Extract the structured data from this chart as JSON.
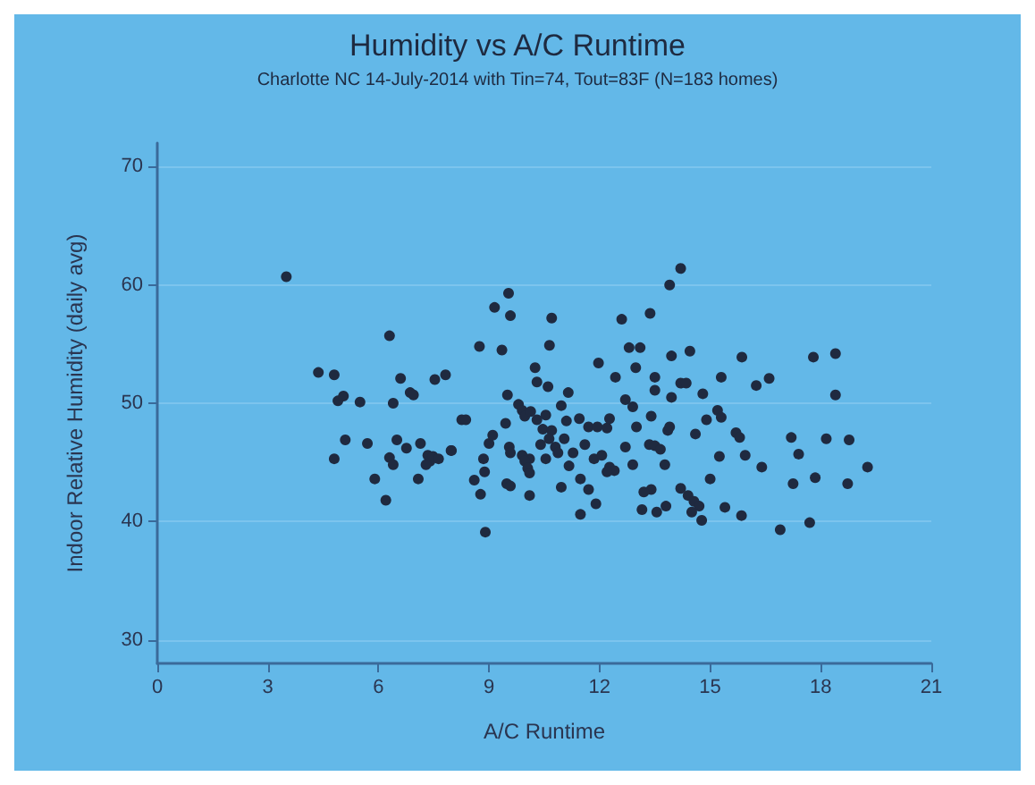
{
  "chart_data": {
    "type": "scatter",
    "title": "Humidity vs A/C Runtime",
    "subtitle": "Charlotte NC 14-July-2014 with Tin=74, Tout=83F (N=183 homes)",
    "xlabel": "A/C Runtime",
    "ylabel": "Indoor Relative Humidity (daily avg)",
    "xlim": [
      0,
      21
    ],
    "xticks": [
      0,
      3,
      6,
      9,
      12,
      15,
      18,
      21
    ],
    "ylim": [
      28,
      72
    ],
    "yticks": [
      30,
      40,
      50,
      60,
      70
    ],
    "grid": "y",
    "marker": "circle",
    "series": [
      {
        "color": "#1f2a40",
        "x": [
          3.5,
          4.37,
          4.8,
          4.9,
          5.05,
          5.5,
          4.8,
          5.1,
          5.7,
          5.9,
          6.2,
          6.3,
          6.4,
          6.6,
          6.5,
          6.3,
          6.4,
          6.76,
          6.86,
          6.95,
          7.14,
          7.08,
          7.34,
          7.4,
          7.29,
          7.48,
          7.63,
          7.97,
          7.98,
          7.53,
          7.82,
          8.26,
          8.37,
          8.74,
          8.6,
          8.77,
          8.85,
          8.88,
          8.9,
          9.0,
          9.1,
          9.15,
          9.53,
          9.58,
          9.35,
          9.5,
          9.45,
          9.55,
          9.58,
          9.48,
          9.58,
          9.8,
          9.9,
          9.97,
          10.1,
          9.9,
          9.97,
          10.05,
          10.1,
          10.1,
          10.25,
          10.3,
          10.7,
          10.64,
          10.6,
          11.15,
          10.13,
          10.3,
          10.46,
          10.7,
          10.54,
          10.96,
          11.1,
          11.45,
          11.7,
          11.94,
          12.2,
          12.27,
          10.8,
          10.87,
          10.63,
          11.04,
          10.4,
          10.54,
          11.17,
          11.28,
          11.6,
          11.85,
          12.06,
          12.27,
          12.4,
          12.2,
          10.96,
          11.48,
          11.7,
          11.9,
          11.48,
          11.97,
          12.43,
          12.6,
          12.8,
          13.1,
          12.98,
          13.37,
          12.7,
          12.9,
          13.5,
          13.5,
          13.0,
          13.4,
          12.7,
          13.35,
          13.5,
          13.65,
          13.85,
          13.9,
          13.95,
          13.95,
          13.9,
          14.2,
          14.2,
          14.35,
          14.45,
          14.8,
          14.9,
          15.2,
          15.3,
          15.3,
          14.6,
          13.77,
          12.9,
          13.4,
          13.2,
          13.15,
          13.55,
          13.8,
          14.2,
          14.4,
          14.56,
          14.7,
          14.77,
          14.5,
          15.0,
          15.25,
          15.7,
          15.8,
          15.95,
          15.4,
          15.85,
          15.86,
          16.25,
          16.6,
          16.4,
          16.9,
          17.2,
          17.4,
          17.25,
          17.7,
          17.85,
          17.8,
          18.4,
          18.15,
          18.4,
          18.77,
          18.73,
          19.27
        ],
        "values": [
          60.7,
          52.6,
          52.4,
          50.2,
          50.6,
          50.1,
          45.3,
          46.9,
          46.6,
          43.6,
          41.8,
          55.7,
          50.0,
          52.1,
          46.9,
          45.4,
          44.8,
          46.2,
          50.9,
          50.7,
          46.6,
          43.6,
          45.6,
          45.1,
          44.8,
          45.5,
          45.3,
          46.0,
          46.0,
          52.0,
          52.4,
          48.6,
          48.6,
          54.8,
          43.5,
          42.3,
          45.3,
          44.2,
          39.1,
          46.6,
          47.3,
          58.1,
          59.3,
          57.4,
          54.5,
          50.7,
          48.3,
          46.3,
          45.8,
          43.2,
          43.0,
          49.9,
          49.4,
          48.9,
          45.3,
          45.6,
          45.1,
          44.5,
          44.1,
          42.2,
          53.0,
          51.8,
          57.2,
          54.9,
          51.4,
          50.9,
          49.3,
          48.6,
          47.8,
          47.7,
          49.0,
          49.8,
          48.5,
          48.7,
          48.0,
          48.0,
          47.9,
          48.7,
          46.3,
          45.8,
          47.0,
          47.0,
          46.5,
          45.3,
          44.7,
          45.8,
          46.5,
          45.3,
          45.6,
          44.6,
          44.3,
          44.2,
          42.9,
          43.6,
          42.7,
          41.5,
          40.6,
          53.4,
          52.2,
          57.1,
          54.7,
          54.7,
          53.0,
          57.6,
          50.3,
          49.7,
          52.2,
          51.1,
          48.0,
          48.9,
          46.3,
          46.5,
          46.4,
          46.1,
          47.7,
          48.0,
          50.5,
          54.0,
          60.0,
          61.4,
          51.7,
          51.7,
          54.4,
          50.8,
          48.6,
          49.4,
          48.8,
          52.2,
          47.4,
          44.8,
          44.8,
          42.7,
          42.5,
          41.0,
          40.8,
          41.3,
          42.8,
          42.2,
          41.7,
          41.3,
          40.1,
          40.8,
          43.6,
          45.5,
          47.5,
          47.1,
          45.6,
          41.2,
          40.5,
          53.9,
          51.5,
          52.1,
          44.6,
          39.3,
          47.1,
          45.7,
          43.2,
          39.9,
          43.7,
          53.9,
          54.2,
          47.0,
          50.7,
          46.9,
          43.2,
          44.6
        ]
      }
    ]
  }
}
